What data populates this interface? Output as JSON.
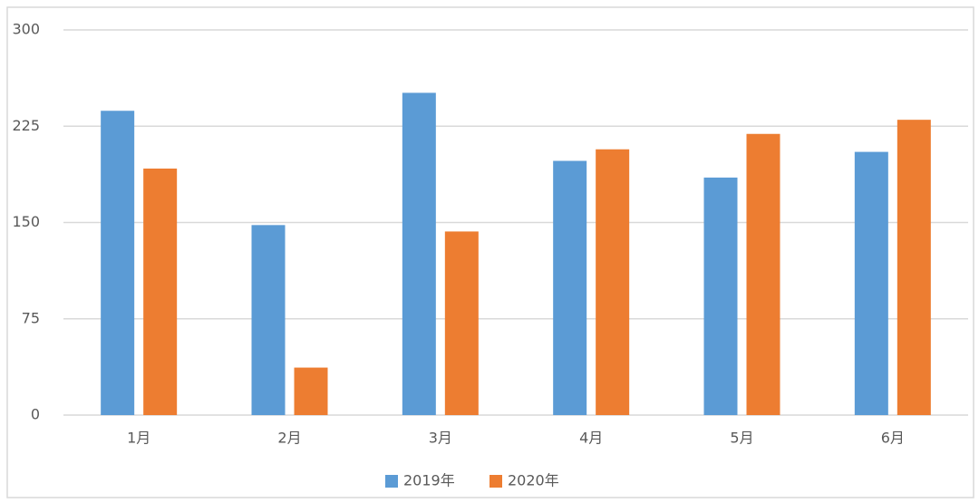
{
  "chart_data": {
    "type": "bar",
    "categories": [
      "1月",
      "2月",
      "3月",
      "4月",
      "5月",
      "6月"
    ],
    "series": [
      {
        "name": "2019年",
        "color": "#5b9bd5",
        "values": [
          237,
          148,
          251,
          198,
          185,
          205
        ]
      },
      {
        "name": "2020年",
        "color": "#ed7d31",
        "values": [
          192,
          37,
          143,
          207,
          219,
          230
        ]
      }
    ],
    "ylim": [
      0,
      300
    ],
    "yticks": [
      0,
      75,
      150,
      225,
      300
    ],
    "grid": true,
    "legend": "bottom"
  }
}
